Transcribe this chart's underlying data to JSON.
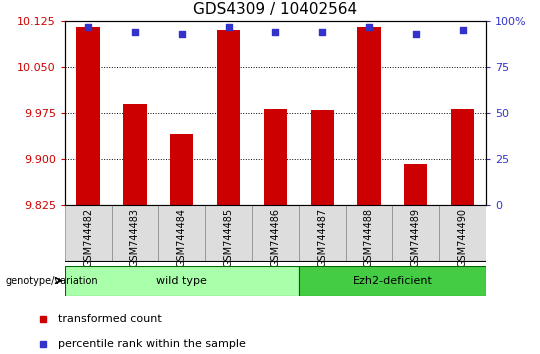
{
  "title": "GDS4309 / 10402564",
  "samples": [
    "GSM744482",
    "GSM744483",
    "GSM744484",
    "GSM744485",
    "GSM744486",
    "GSM744487",
    "GSM744488",
    "GSM744489",
    "GSM744490"
  ],
  "transformed_counts": [
    10.115,
    9.99,
    9.942,
    10.11,
    9.982,
    9.98,
    10.115,
    9.893,
    9.982
  ],
  "percentile_ranks": [
    97,
    94,
    93,
    97,
    94,
    94,
    97,
    93,
    95
  ],
  "ylim_left": [
    9.825,
    10.125
  ],
  "ylim_right": [
    0,
    100
  ],
  "yticks_left": [
    9.825,
    9.9,
    9.975,
    10.05,
    10.125
  ],
  "yticks_right": [
    0,
    25,
    50,
    75,
    100
  ],
  "bar_color": "#CC0000",
  "dot_color": "#3333CC",
  "background_color": "#FFFFFF",
  "group1_color": "#AAFFAA",
  "group2_color": "#44CC44",
  "group1_label": "wild type",
  "group2_label": "Ezh2-deficient",
  "group_annotation": "genotype/variation",
  "group1_samples": [
    0,
    1,
    2,
    3,
    4
  ],
  "group2_samples": [
    5,
    6,
    7,
    8
  ],
  "legend_label1": "transformed count",
  "legend_label2": "percentile rank within the sample",
  "title_fontsize": 11,
  "axis_fontsize": 8,
  "sample_fontsize": 7,
  "group_fontsize": 8,
  "legend_fontsize": 8
}
